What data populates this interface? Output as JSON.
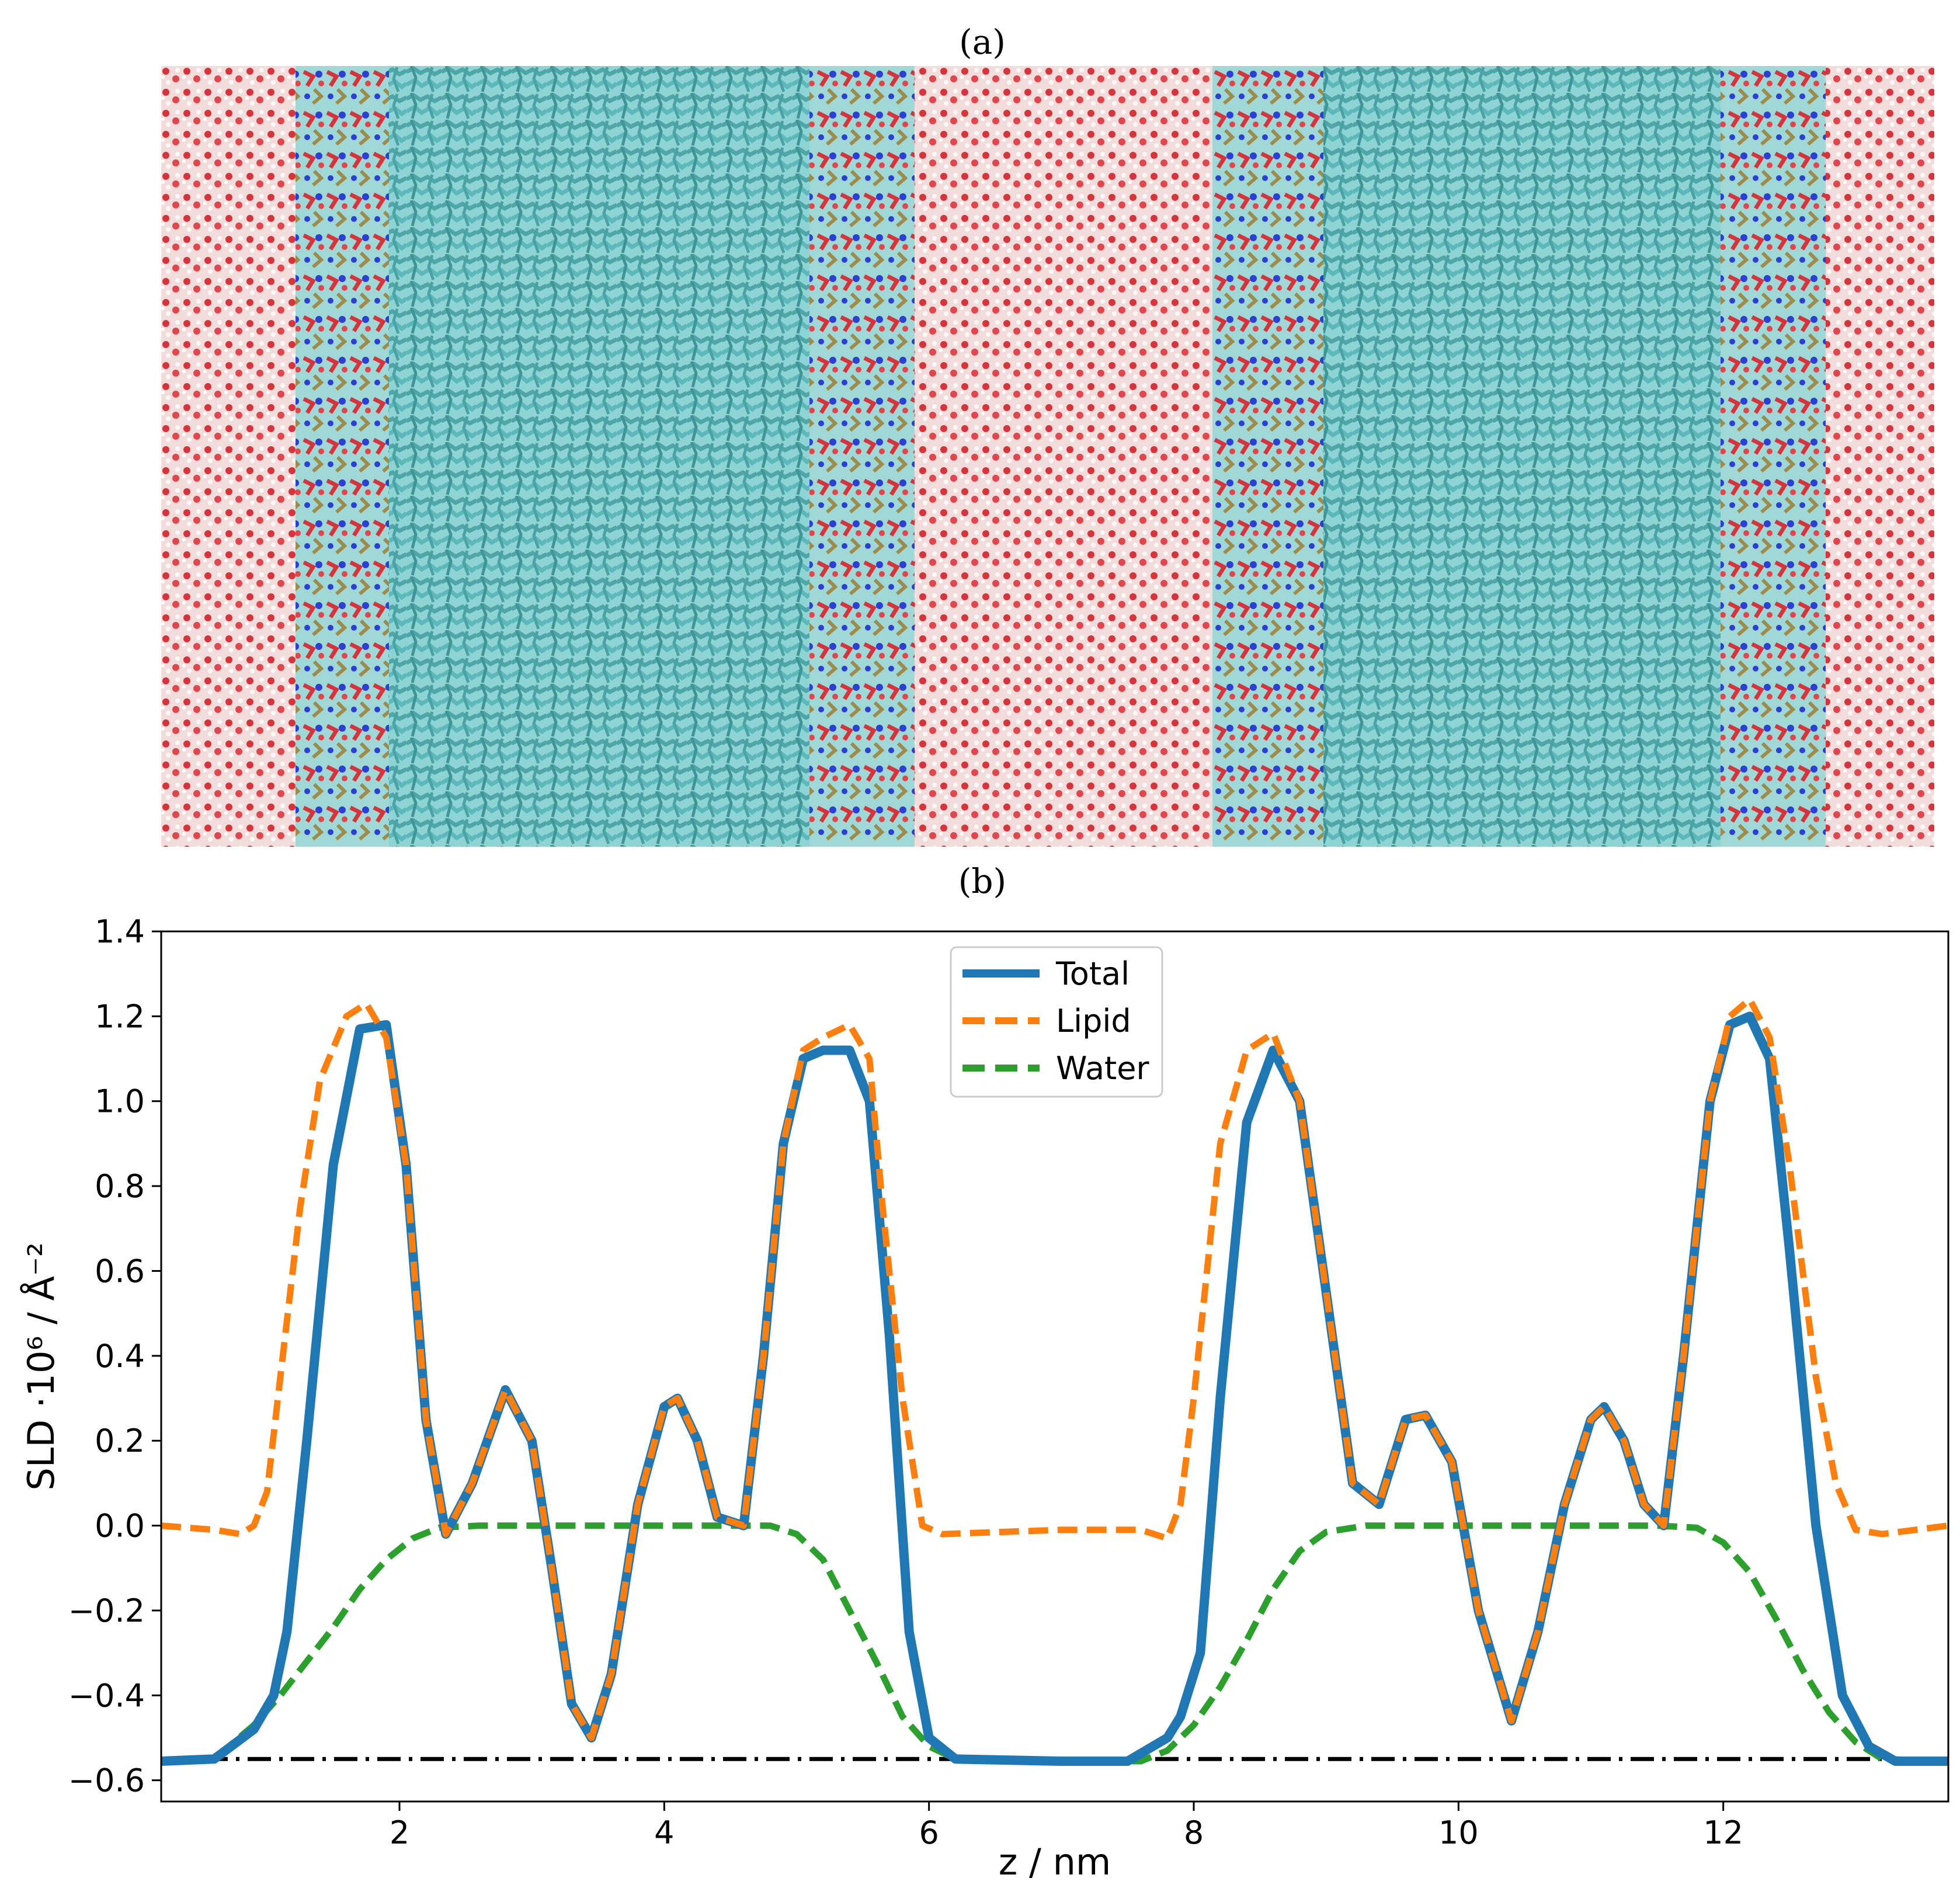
{
  "panel_a": {
    "label": "(a)"
  },
  "panel_b": {
    "label": "(b)"
  },
  "colors": {
    "total": "#1f77b4",
    "lipid": "#ff7f0e",
    "water": "#2ca02c",
    "reference": "#000000",
    "water_molecules": "#e0403f",
    "lipid_chains": "#6cc8c8",
    "nitrogen": "#2b3fd6",
    "phosphorus": "#a08a4a"
  },
  "chart_data": {
    "type": "line",
    "title": "(b)",
    "xlabel": "z / nm",
    "ylabel": "SLD ·10⁶ / Å⁻²",
    "xlim": [
      0.2,
      13.7
    ],
    "ylim": [
      -0.65,
      1.4
    ],
    "xticks": [
      2,
      4,
      6,
      8,
      10,
      12
    ],
    "yticks": [
      -0.6,
      -0.4,
      -0.2,
      0.0,
      0.2,
      0.4,
      0.6,
      0.8,
      1.0,
      1.2,
      1.4
    ],
    "ytick_labels": [
      "−0.6",
      "−0.4",
      "−0.2",
      "0.0",
      "0.2",
      "0.4",
      "0.6",
      "0.8",
      "1.0",
      "1.2",
      "1.4"
    ],
    "legend_position": "top-center",
    "series": [
      {
        "name": "Total",
        "style": "solid",
        "x": [
          0.2,
          0.6,
          0.9,
          1.05,
          1.15,
          1.3,
          1.5,
          1.7,
          1.9,
          2.05,
          2.2,
          2.35,
          2.55,
          2.8,
          3.0,
          3.15,
          3.3,
          3.45,
          3.6,
          3.8,
          4.0,
          4.1,
          4.25,
          4.4,
          4.6,
          4.75,
          4.9,
          5.05,
          5.2,
          5.4,
          5.55,
          5.7,
          5.85,
          6.0,
          6.2,
          7.0,
          7.5,
          7.8,
          7.9,
          8.05,
          8.2,
          8.4,
          8.6,
          8.8,
          9.0,
          9.2,
          9.4,
          9.6,
          9.75,
          9.95,
          10.15,
          10.4,
          10.6,
          10.8,
          11.0,
          11.1,
          11.25,
          11.4,
          11.55,
          11.7,
          11.9,
          12.05,
          12.2,
          12.35,
          12.5,
          12.7,
          12.9,
          13.1,
          13.3,
          13.7
        ],
        "y": [
          -0.555,
          -0.55,
          -0.48,
          -0.4,
          -0.25,
          0.2,
          0.85,
          1.17,
          1.18,
          0.85,
          0.25,
          -0.02,
          0.1,
          0.32,
          0.2,
          -0.1,
          -0.42,
          -0.5,
          -0.35,
          0.05,
          0.28,
          0.3,
          0.2,
          0.02,
          0.0,
          0.4,
          0.9,
          1.1,
          1.12,
          1.12,
          1.0,
          0.45,
          -0.25,
          -0.5,
          -0.55,
          -0.555,
          -0.555,
          -0.5,
          -0.45,
          -0.3,
          0.3,
          0.95,
          1.12,
          1.0,
          0.55,
          0.1,
          0.05,
          0.25,
          0.26,
          0.15,
          -0.2,
          -0.46,
          -0.25,
          0.05,
          0.25,
          0.28,
          0.2,
          0.05,
          0.0,
          0.4,
          1.0,
          1.18,
          1.2,
          1.1,
          0.65,
          0.0,
          -0.4,
          -0.52,
          -0.555,
          -0.555
        ]
      },
      {
        "name": "Lipid",
        "style": "dashed",
        "x": [
          0.2,
          0.6,
          0.8,
          0.9,
          1.0,
          1.1,
          1.25,
          1.4,
          1.6,
          1.75,
          1.9,
          2.05,
          2.2,
          2.35,
          2.55,
          2.8,
          3.0,
          3.15,
          3.3,
          3.45,
          3.6,
          3.8,
          4.0,
          4.1,
          4.25,
          4.4,
          4.6,
          4.75,
          4.9,
          5.05,
          5.2,
          5.4,
          5.55,
          5.65,
          5.8,
          5.95,
          6.1,
          7.0,
          7.6,
          7.8,
          7.9,
          8.0,
          8.2,
          8.4,
          8.6,
          8.8,
          9.0,
          9.2,
          9.4,
          9.6,
          9.75,
          9.95,
          10.15,
          10.4,
          10.6,
          10.8,
          11.0,
          11.1,
          11.25,
          11.4,
          11.55,
          11.7,
          11.9,
          12.05,
          12.2,
          12.35,
          12.5,
          12.7,
          12.85,
          13.0,
          13.2,
          13.7
        ],
        "y": [
          0.0,
          -0.01,
          -0.02,
          0.0,
          0.08,
          0.35,
          0.75,
          1.05,
          1.2,
          1.23,
          1.15,
          0.85,
          0.25,
          -0.02,
          0.1,
          0.32,
          0.2,
          -0.1,
          -0.42,
          -0.5,
          -0.35,
          0.05,
          0.28,
          0.3,
          0.2,
          0.02,
          0.0,
          0.4,
          0.9,
          1.12,
          1.15,
          1.18,
          1.1,
          0.75,
          0.3,
          0.0,
          -0.02,
          -0.01,
          -0.01,
          -0.03,
          0.05,
          0.3,
          0.9,
          1.12,
          1.16,
          1.0,
          0.55,
          0.1,
          0.05,
          0.25,
          0.26,
          0.15,
          -0.2,
          -0.46,
          -0.25,
          0.05,
          0.25,
          0.28,
          0.2,
          0.05,
          0.0,
          0.4,
          1.0,
          1.2,
          1.24,
          1.15,
          0.85,
          0.35,
          0.1,
          -0.01,
          -0.02,
          0.0
        ]
      },
      {
        "name": "Water",
        "style": "dashed",
        "x": [
          0.2,
          0.6,
          0.9,
          1.1,
          1.3,
          1.5,
          1.7,
          1.9,
          2.1,
          2.3,
          2.6,
          3.0,
          4.0,
          4.8,
          5.0,
          5.2,
          5.4,
          5.6,
          5.8,
          6.0,
          6.2,
          7.0,
          7.6,
          7.8,
          8.0,
          8.2,
          8.4,
          8.6,
          8.8,
          9.0,
          9.3,
          10.0,
          11.5,
          11.8,
          12.0,
          12.2,
          12.4,
          12.6,
          12.8,
          13.0,
          13.2,
          13.7
        ],
        "y": [
          -0.555,
          -0.55,
          -0.47,
          -0.4,
          -0.32,
          -0.24,
          -0.15,
          -0.08,
          -0.03,
          -0.005,
          0.0,
          0.0,
          0.0,
          0.0,
          -0.02,
          -0.08,
          -0.2,
          -0.32,
          -0.45,
          -0.52,
          -0.55,
          -0.555,
          -0.555,
          -0.53,
          -0.47,
          -0.38,
          -0.27,
          -0.15,
          -0.06,
          -0.015,
          0.0,
          0.0,
          0.0,
          -0.005,
          -0.04,
          -0.11,
          -0.22,
          -0.34,
          -0.44,
          -0.51,
          -0.55,
          -0.555
        ]
      },
      {
        "name": "reference",
        "style": "dashdot",
        "x": [
          0.2,
          13.7
        ],
        "y": [
          -0.55,
          -0.55
        ]
      }
    ]
  }
}
